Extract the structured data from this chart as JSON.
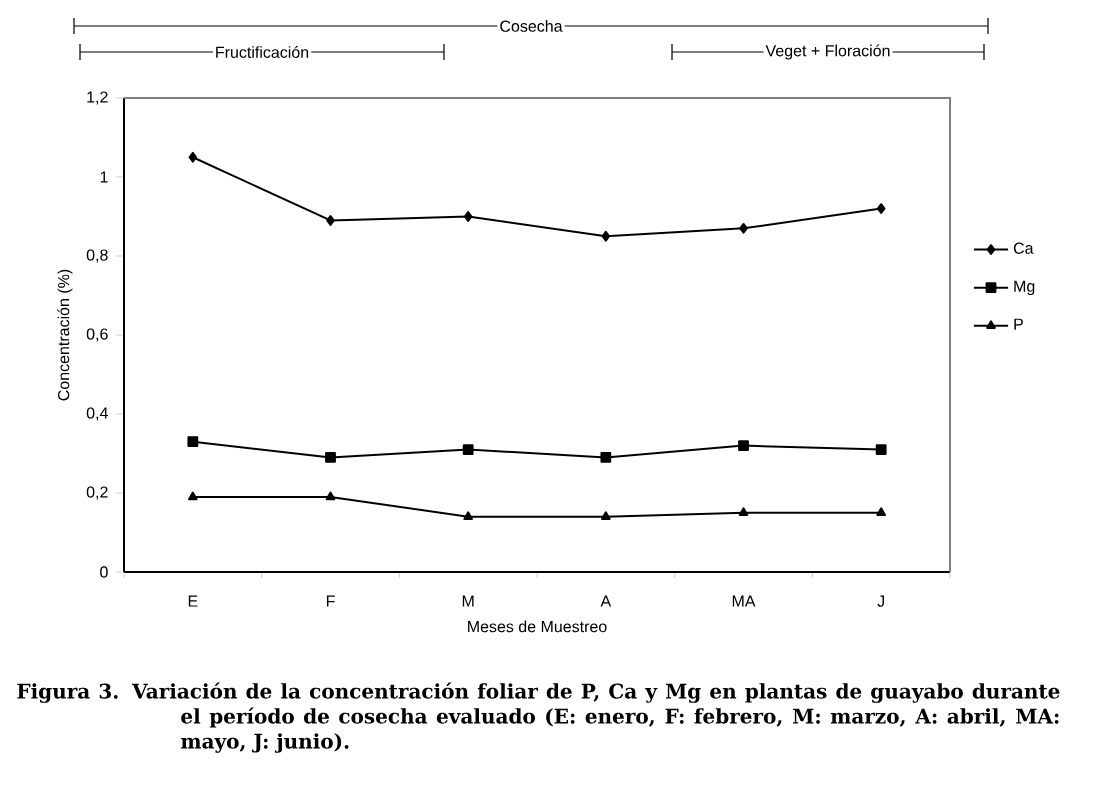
{
  "chart_data": {
    "type": "line",
    "xlabel": "Meses de Muestreo",
    "ylabel": "Concentración (%)",
    "categories": [
      "E",
      "F",
      "M",
      "A",
      "MA",
      "J"
    ],
    "series": [
      {
        "name": "Ca",
        "color": "#000000",
        "marker": "diamond",
        "values": [
          1.05,
          0.89,
          0.9,
          0.85,
          0.87,
          0.92
        ]
      },
      {
        "name": "Mg",
        "color": "#000000",
        "marker": "square",
        "values": [
          0.33,
          0.29,
          0.31,
          0.29,
          0.32,
          0.31
        ]
      },
      {
        "name": "P",
        "color": "#000000",
        "marker": "triangle",
        "values": [
          0.19,
          0.19,
          0.14,
          0.14,
          0.15,
          0.15
        ]
      }
    ],
    "ylim": [
      0,
      1.2
    ],
    "yticks": [
      0,
      {
        "value": 0.2,
        "label": "0,2"
      },
      {
        "value": 0.4,
        "label": "0,4"
      },
      {
        "value": 0.6,
        "label": "0,6"
      },
      {
        "value": 0.8,
        "label": "0,8"
      },
      1,
      {
        "value": 1.2,
        "label": "1,2"
      }
    ],
    "grid": false,
    "legend": "right",
    "annotations": [
      "Cosecha",
      "Fructificación",
      "Veget + Floración",
      "Figura 3. Variación de la concentración foliar de P, Ca y Mg en plantas de guayabo durante el período de cosecha evaluado (E: enero, F: febrero, M: marzo, A: abril, MA: mayo, J: junio)."
    ]
  }
}
